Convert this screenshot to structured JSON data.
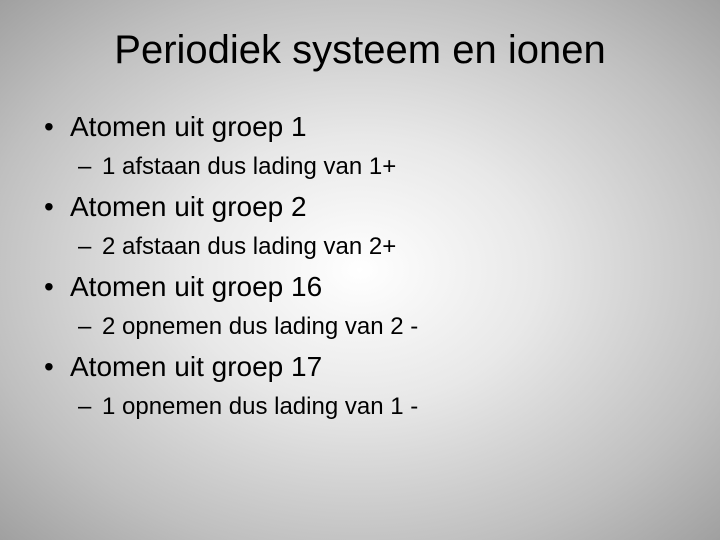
{
  "slide": {
    "title": "Periodiek systeem en ionen",
    "title_fontsize": 40,
    "title_color": "#000000",
    "background_gradient": {
      "type": "radial",
      "stops": [
        "#ffffff",
        "#e8e8e8",
        "#bfbfbf",
        "#a0a0a0"
      ]
    },
    "bullets": [
      {
        "text": "Atomen uit groep 1",
        "sub": [
          {
            "text": "1 afstaan dus lading van 1+"
          }
        ]
      },
      {
        "text": "Atomen uit groep 2",
        "sub": [
          {
            "text": "2 afstaan dus lading van 2+"
          }
        ]
      },
      {
        "text": "Atomen uit groep 16",
        "sub": [
          {
            "text": "2 opnemen dus lading van 2 -"
          }
        ]
      },
      {
        "text": "Atomen uit groep 17",
        "sub": [
          {
            "text": "1 opnemen dus lading van 1 -"
          }
        ]
      }
    ],
    "level1_fontsize": 28,
    "level2_fontsize": 24,
    "text_color": "#000000"
  }
}
